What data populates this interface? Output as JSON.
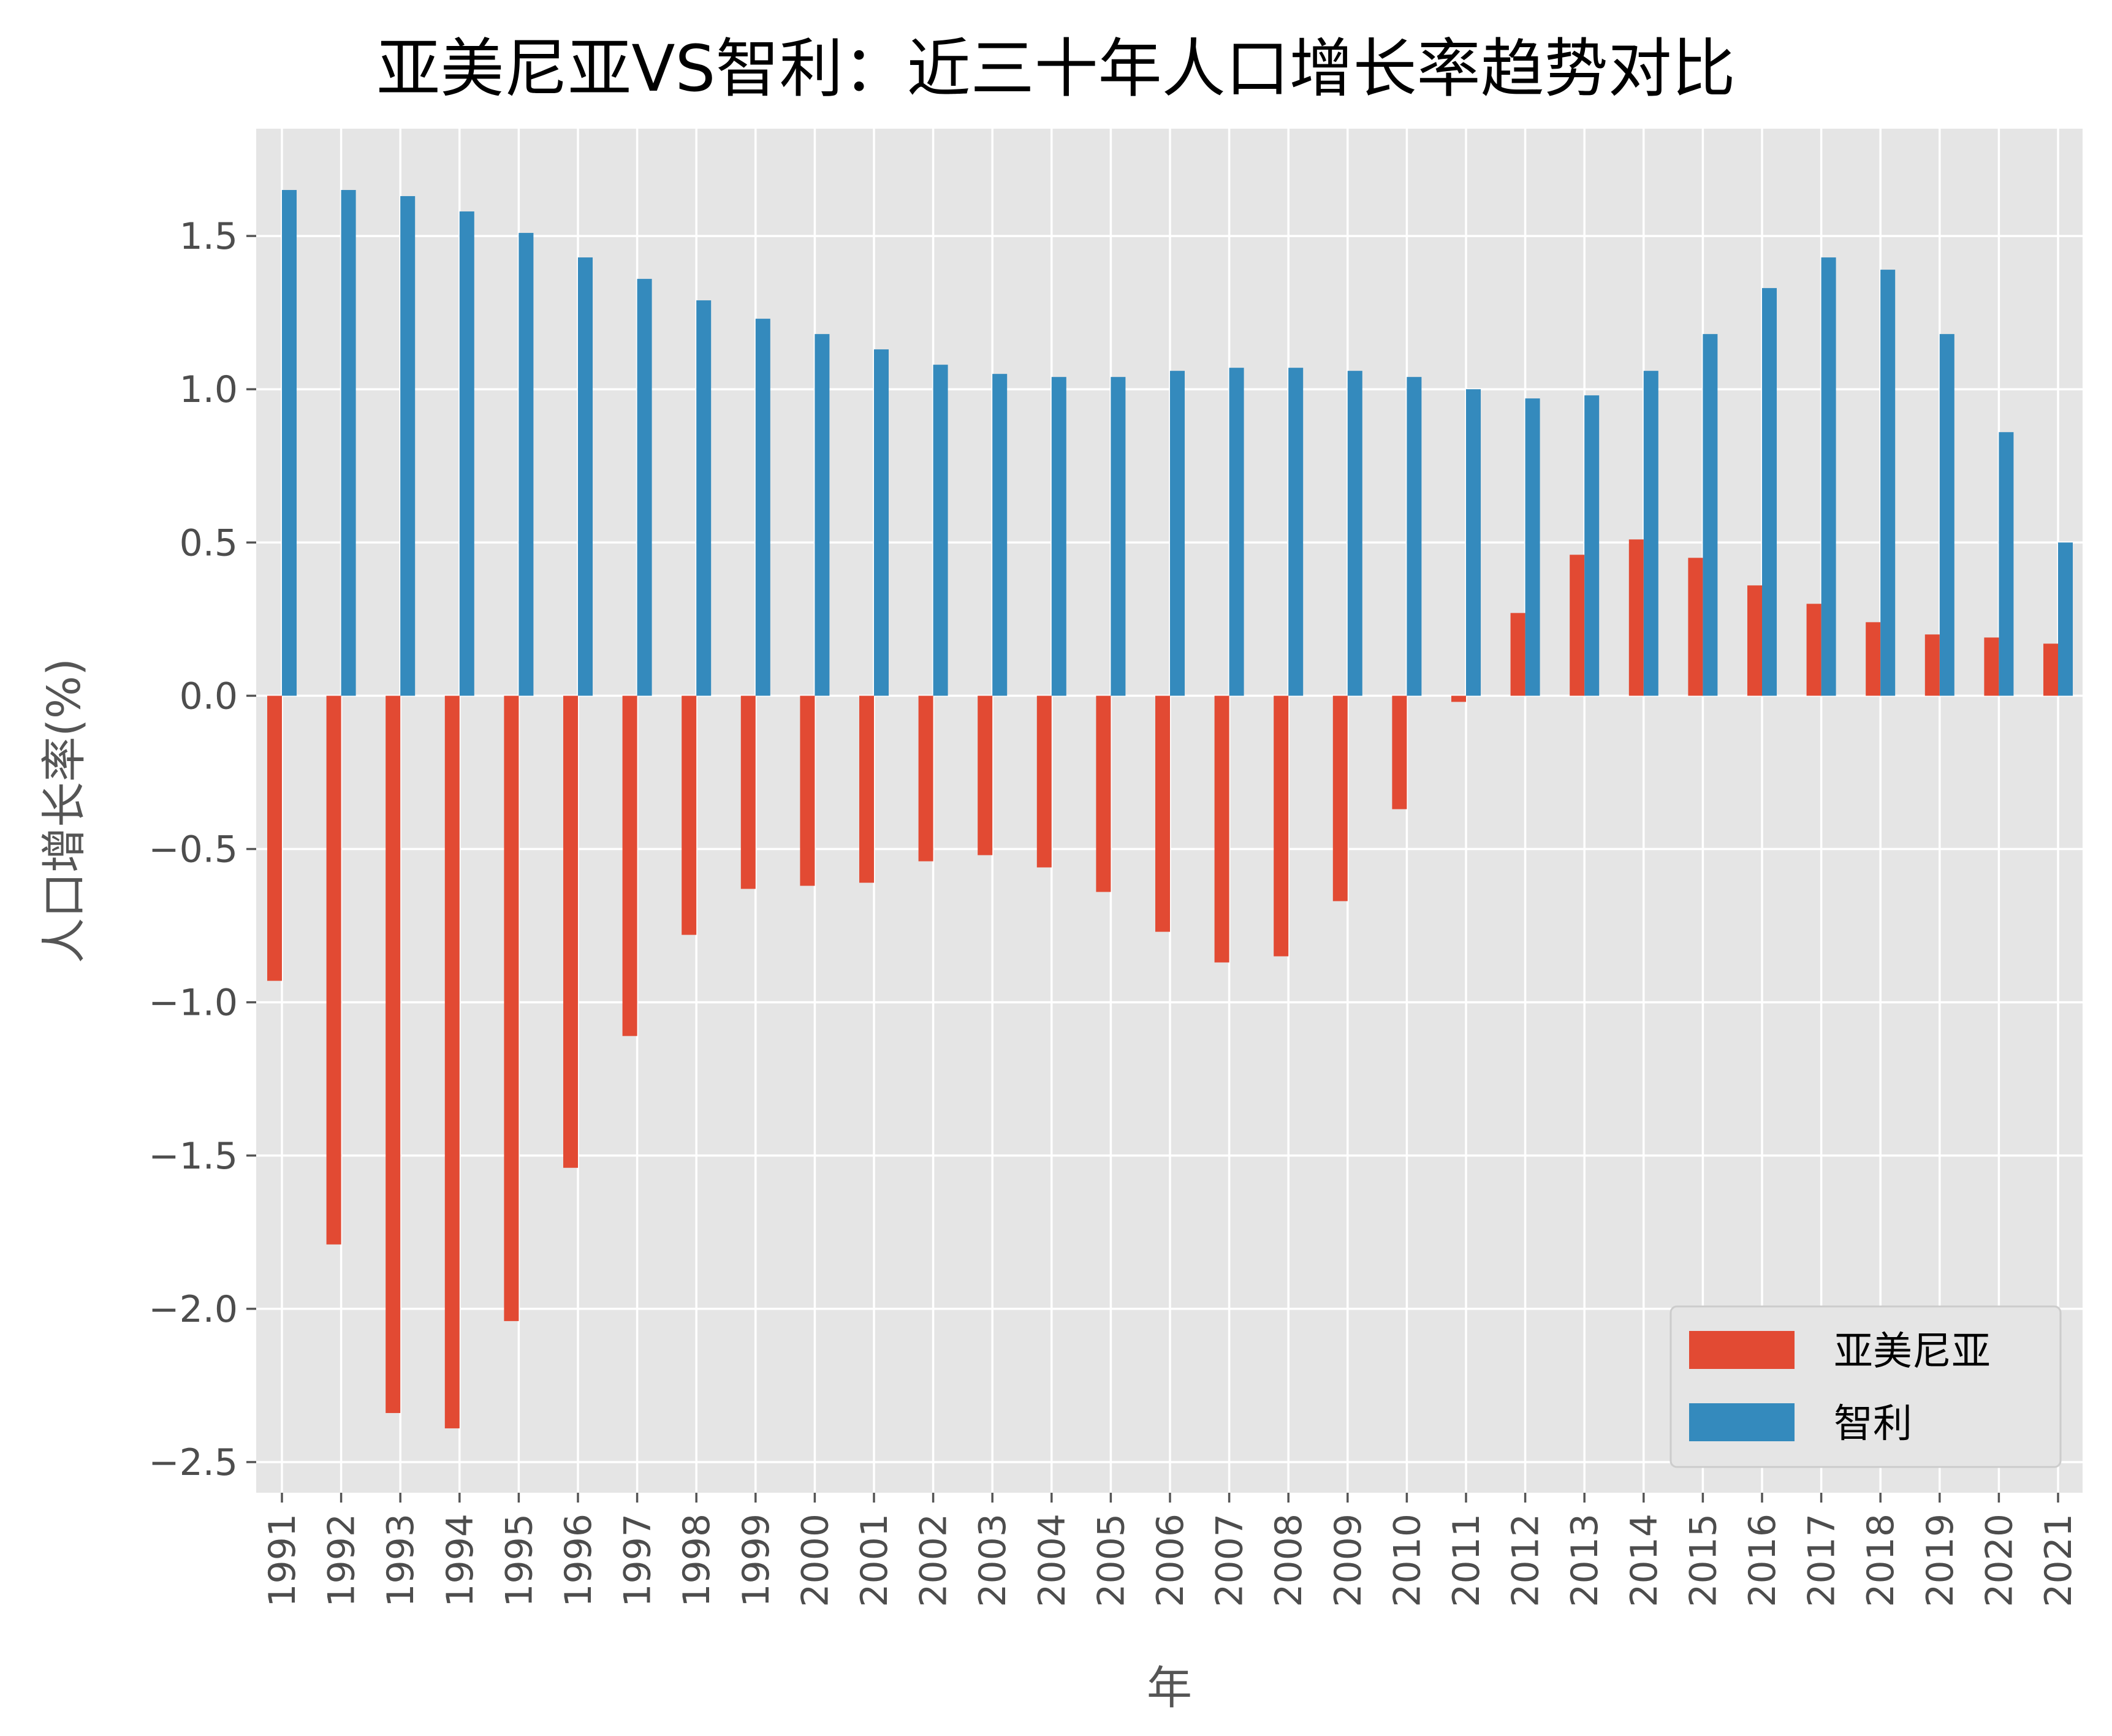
{
  "chart_data": {
    "type": "bar",
    "title": "亚美尼亚VS智利：近三十年人口增长率趋势对比",
    "xlabel": "年",
    "ylabel": "人口增长率(%)",
    "ylim": [
      -2.6,
      1.85
    ],
    "yticks": [
      -2.5,
      -2.0,
      -1.5,
      -1.0,
      -0.5,
      0.0,
      0.5,
      1.0,
      1.5
    ],
    "ytick_labels": [
      "−2.5",
      "−2.0",
      "−1.5",
      "−1.0",
      "−0.5",
      "0.0",
      "0.5",
      "1.0",
      "1.5"
    ],
    "grid": true,
    "legend_position": "bottom-right",
    "categories": [
      "1991",
      "1992",
      "1993",
      "1994",
      "1995",
      "1996",
      "1997",
      "1998",
      "1999",
      "2000",
      "2001",
      "2002",
      "2003",
      "2004",
      "2005",
      "2006",
      "2007",
      "2008",
      "2009",
      "2010",
      "2011",
      "2012",
      "2013",
      "2014",
      "2015",
      "2016",
      "2017",
      "2018",
      "2019",
      "2020",
      "2021"
    ],
    "series": [
      {
        "name": "亚美尼亚",
        "color": "#E24A33",
        "values": [
          -0.93,
          -1.79,
          -2.34,
          -2.39,
          -2.04,
          -1.54,
          -1.11,
          -0.78,
          -0.63,
          -0.62,
          -0.61,
          -0.54,
          -0.52,
          -0.56,
          -0.64,
          -0.77,
          -0.87,
          -0.85,
          -0.67,
          -0.37,
          -0.02,
          0.27,
          0.46,
          0.51,
          0.45,
          0.36,
          0.3,
          0.24,
          0.2,
          0.19,
          0.17
        ]
      },
      {
        "name": "智利",
        "color": "#348ABD",
        "values": [
          1.65,
          1.65,
          1.63,
          1.58,
          1.51,
          1.43,
          1.36,
          1.29,
          1.23,
          1.18,
          1.13,
          1.08,
          1.05,
          1.04,
          1.04,
          1.06,
          1.07,
          1.07,
          1.06,
          1.04,
          1.0,
          0.97,
          0.98,
          1.06,
          1.18,
          1.33,
          1.43,
          1.39,
          1.18,
          0.86,
          0.5
        ]
      }
    ]
  }
}
